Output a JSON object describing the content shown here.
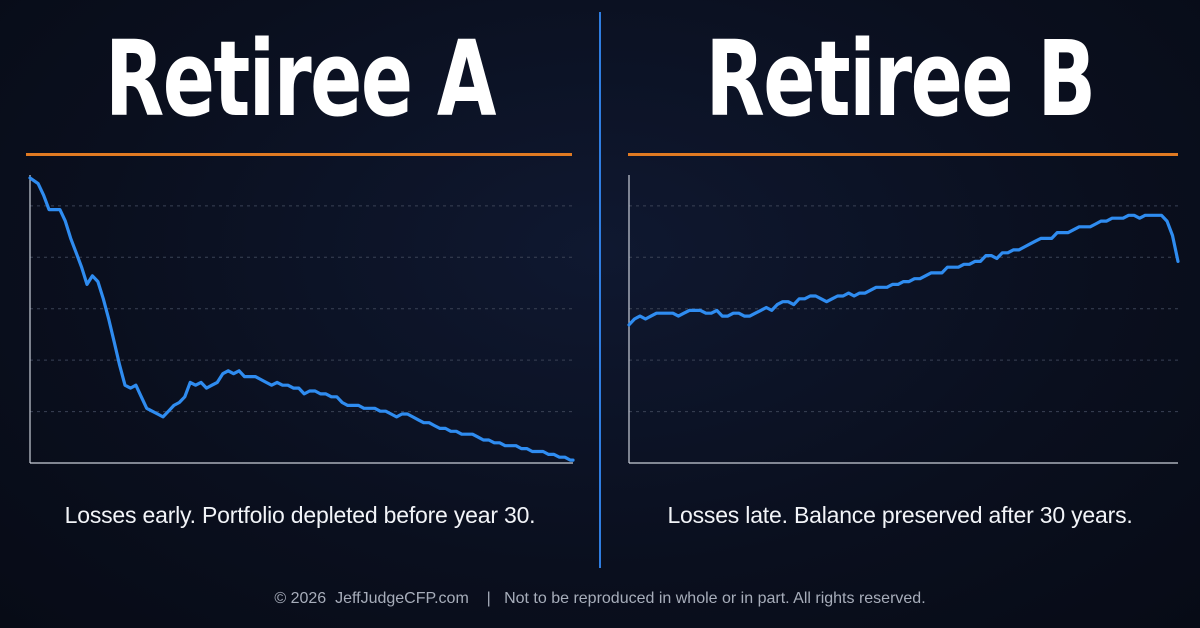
{
  "panels": [
    {
      "title": "Retiree A",
      "caption": "Losses early. Portfolio depleted before year 30."
    },
    {
      "title": "Retiree B",
      "caption": "Losses late. Balance preserved after 30 years."
    }
  ],
  "footer": {
    "copyright": "© 2026  JeffJudgeCFP.com",
    "separator": "|",
    "notice": "Not to be reproduced in whole or in part. All rights reserved."
  },
  "colors": {
    "background": "#0a0f1e",
    "line": "#2f8cf0",
    "rule": "#e07a22",
    "divider": "#2f7de0",
    "gridline": "#3a4255"
  },
  "chart_data": [
    {
      "type": "line",
      "title": "Retiree A",
      "xlabel": "",
      "ylabel": "",
      "grid": true,
      "xlim": [
        0,
        100
      ],
      "ylim": [
        0,
        100
      ],
      "series": [
        {
          "x": [
            0,
            1.5,
            2.5,
            3.5,
            4.5,
            5.5,
            6.5,
            7.5,
            8.5,
            9.5,
            10.5,
            11.5,
            12.5,
            13.5,
            14.5,
            15.5,
            16.5,
            17.5,
            18.5,
            19.5,
            20.5,
            21.5,
            22.5,
            23.5,
            24.5,
            25.5,
            26.5,
            27.5,
            28.5,
            29.5,
            30.5,
            31.5,
            32.5,
            33.5,
            34.5,
            35.5,
            36.5,
            37.5,
            38.5,
            39.5,
            40.5,
            41.5,
            42.5,
            43.5,
            44.5,
            45.5,
            46.5,
            47.5,
            48.5,
            49.5,
            50.5,
            51.5,
            52.5,
            53.5,
            54.5,
            55.5,
            56.5,
            57.5,
            58.5,
            59.5,
            60.5,
            61.5,
            62.5,
            63.5,
            64.5,
            65.5,
            66.5,
            67.5,
            68.5,
            69.5,
            70.5,
            71.5,
            72.5,
            73.5,
            74.5,
            75.5,
            76.5,
            77.5,
            78.5,
            79.5,
            80.5,
            81.5,
            82.5,
            83.5,
            84.5,
            85.5,
            86.5,
            87.5,
            88.5,
            89.5,
            90.5,
            91.5,
            92.5,
            93.5,
            94.5,
            95.5,
            96.5,
            97.5,
            98.5,
            99.5,
            100
          ],
          "y": [
            99,
            97,
            93,
            88,
            88,
            88,
            84,
            78,
            73,
            68,
            62,
            65,
            63,
            57,
            50,
            42,
            34,
            27,
            26,
            27,
            23,
            19,
            18,
            17,
            16,
            18,
            20,
            21,
            23,
            28,
            27,
            28,
            26,
            27,
            28,
            31,
            32,
            31,
            32,
            30,
            30,
            30,
            29,
            28,
            27,
            28,
            27,
            27,
            26,
            26,
            24,
            25,
            25,
            24,
            24,
            23,
            23,
            21,
            20,
            20,
            20,
            19,
            19,
            19,
            18,
            18,
            17,
            16,
            17,
            17,
            16,
            15,
            14,
            14,
            13,
            12,
            12,
            11,
            11,
            10,
            10,
            10,
            9,
            8,
            8,
            7,
            7,
            6,
            6,
            6,
            5,
            5,
            4,
            4,
            4,
            3,
            3,
            2,
            2,
            1,
            1
          ]
        }
      ]
    },
    {
      "type": "line",
      "title": "Retiree B",
      "xlabel": "",
      "ylabel": "",
      "grid": true,
      "xlim": [
        0,
        100
      ],
      "ylim": [
        0,
        100
      ],
      "series": [
        {
          "x": [
            0,
            1,
            2,
            3,
            4,
            5,
            6,
            7,
            8,
            9,
            10,
            11,
            12,
            13,
            14,
            15,
            16,
            17,
            18,
            19,
            20,
            21,
            22,
            23,
            24,
            25,
            26,
            27,
            28,
            29,
            30,
            31,
            32,
            33,
            34,
            35,
            36,
            37,
            38,
            39,
            40,
            41,
            42,
            43,
            44,
            45,
            46,
            47,
            48,
            49,
            50,
            51,
            52,
            53,
            54,
            55,
            56,
            57,
            58,
            59,
            60,
            61,
            62,
            63,
            64,
            65,
            66,
            67,
            68,
            69,
            70,
            71,
            72,
            73,
            74,
            75,
            76,
            77,
            78,
            79,
            80,
            81,
            82,
            83,
            84,
            85,
            86,
            87,
            88,
            89,
            90,
            91,
            92,
            93,
            94,
            95,
            96,
            97,
            98,
            99,
            100
          ],
          "y": [
            48,
            50,
            51,
            50,
            51,
            52,
            52,
            52,
            52,
            51,
            52,
            53,
            53,
            53,
            52,
            52,
            53,
            51,
            51,
            52,
            52,
            51,
            51,
            52,
            53,
            54,
            53,
            55,
            56,
            56,
            55,
            57,
            57,
            58,
            58,
            57,
            56,
            57,
            58,
            58,
            59,
            58,
            59,
            59,
            60,
            61,
            61,
            61,
            62,
            62,
            63,
            63,
            64,
            64,
            65,
            66,
            66,
            66,
            68,
            68,
            68,
            69,
            69,
            70,
            70,
            72,
            72,
            71,
            73,
            73,
            74,
            74,
            75,
            76,
            77,
            78,
            78,
            78,
            80,
            80,
            80,
            81,
            82,
            82,
            82,
            83,
            84,
            84,
            85,
            85,
            85,
            86,
            86,
            85,
            86,
            86,
            86,
            86,
            84,
            79,
            70
          ]
        }
      ]
    }
  ]
}
